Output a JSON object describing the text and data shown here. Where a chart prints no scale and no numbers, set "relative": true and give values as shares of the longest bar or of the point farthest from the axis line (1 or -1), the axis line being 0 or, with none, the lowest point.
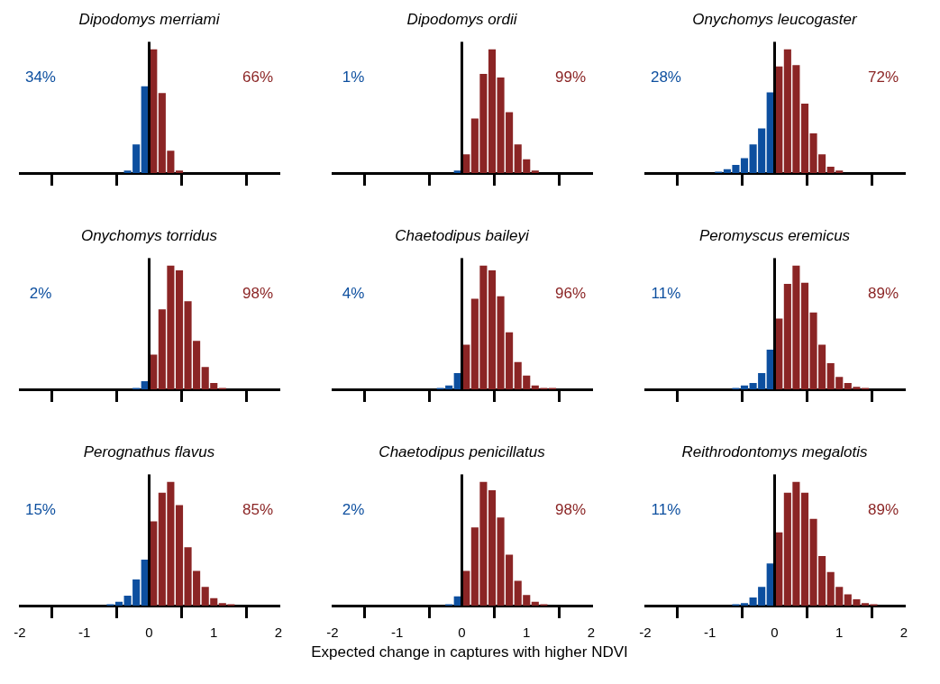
{
  "chart_data": [
    {
      "type": "bar",
      "title": "Dipodomys merriami",
      "relative": true,
      "xlim": [
        -2,
        2
      ],
      "xticks": [
        -2,
        -1,
        0,
        1,
        2
      ],
      "tick_labels": false,
      "x": [
        -0.333,
        -0.2,
        -0.067,
        0.067,
        0.2,
        0.333,
        0.467
      ],
      "values": [
        0.02,
        0.23,
        0.7,
        1,
        0.645,
        0.18,
        0.02
      ],
      "colors": [
        "#0d4f9f",
        "#0d4f9f",
        "#0d4f9f",
        "#8b2525",
        "#8b2525",
        "#8b2525",
        "#8b2525"
      ],
      "ref_lines": [
        {
          "axis": "x",
          "value": 0,
          "color": "#000000"
        }
      ],
      "annotations": [
        "34%",
        "66%"
      ]
    },
    {
      "type": "bar",
      "title": "Dipodomys ordii",
      "relative": true,
      "xlim": [
        -2,
        2
      ],
      "xticks": [
        -2,
        -1,
        0,
        1,
        2
      ],
      "tick_labels": false,
      "x": [
        -0.067,
        0.067,
        0.2,
        0.333,
        0.467,
        0.6,
        0.733,
        0.867,
        1,
        1.133
      ],
      "values": [
        0.02,
        0.15,
        0.44,
        0.8,
        1,
        0.77,
        0.49,
        0.23,
        0.11,
        0.02
      ],
      "colors": [
        "#0d4f9f",
        "#8b2525",
        "#8b2525",
        "#8b2525",
        "#8b2525",
        "#8b2525",
        "#8b2525",
        "#8b2525",
        "#8b2525",
        "#8b2525"
      ],
      "ref_lines": [
        {
          "axis": "x",
          "value": 0,
          "color": "#000000"
        }
      ],
      "annotations": [
        "1%",
        "99%"
      ]
    },
    {
      "type": "bar",
      "title": "Onychomys leucogaster",
      "relative": true,
      "xlim": [
        -2,
        2
      ],
      "xticks": [
        -2,
        -1,
        0,
        1,
        2
      ],
      "tick_labels": false,
      "x": [
        -0.867,
        -0.733,
        -0.6,
        -0.467,
        -0.333,
        -0.2,
        -0.067,
        0.067,
        0.2,
        0.333,
        0.467,
        0.6,
        0.733,
        0.867,
        1
      ],
      "values": [
        0.01,
        0.03,
        0.065,
        0.12,
        0.23,
        0.36,
        0.65,
        0.86,
        1,
        0.87,
        0.56,
        0.32,
        0.15,
        0.05,
        0.02
      ],
      "colors": [
        "#0d4f9f",
        "#0d4f9f",
        "#0d4f9f",
        "#0d4f9f",
        "#0d4f9f",
        "#0d4f9f",
        "#0d4f9f",
        "#8b2525",
        "#8b2525",
        "#8b2525",
        "#8b2525",
        "#8b2525",
        "#8b2525",
        "#8b2525",
        "#8b2525"
      ],
      "ref_lines": [
        {
          "axis": "x",
          "value": 0,
          "color": "#000000"
        }
      ],
      "annotations": [
        "28%",
        "72%"
      ]
    },
    {
      "type": "bar",
      "title": "Onychomys torridus",
      "relative": true,
      "xlim": [
        -2,
        2
      ],
      "xticks": [
        -2,
        -1,
        0,
        1,
        2
      ],
      "tick_labels": false,
      "x": [
        -0.2,
        -0.067,
        0.067,
        0.2,
        0.333,
        0.467,
        0.6,
        0.733,
        0.867,
        1,
        1.133
      ],
      "values": [
        0.01,
        0.065,
        0.28,
        0.645,
        1,
        0.96,
        0.71,
        0.39,
        0.18,
        0.05,
        0.01
      ],
      "colors": [
        "#0d4f9f",
        "#0d4f9f",
        "#8b2525",
        "#8b2525",
        "#8b2525",
        "#8b2525",
        "#8b2525",
        "#8b2525",
        "#8b2525",
        "#8b2525",
        "#8b2525"
      ],
      "ref_lines": [
        {
          "axis": "x",
          "value": 0,
          "color": "#000000"
        }
      ],
      "annotations": [
        "2%",
        "98%"
      ]
    },
    {
      "type": "bar",
      "title": "Chaetodipus baileyi",
      "relative": true,
      "xlim": [
        -2,
        2
      ],
      "xticks": [
        -2,
        -1,
        0,
        1,
        2
      ],
      "tick_labels": false,
      "x": [
        -0.333,
        -0.2,
        -0.067,
        0.067,
        0.2,
        0.333,
        0.467,
        0.6,
        0.733,
        0.867,
        1,
        1.133,
        1.267,
        1.4
      ],
      "values": [
        0.01,
        0.03,
        0.13,
        0.36,
        0.73,
        1,
        0.96,
        0.75,
        0.46,
        0.22,
        0.11,
        0.03,
        0.01,
        0.01
      ],
      "colors": [
        "#0d4f9f",
        "#0d4f9f",
        "#0d4f9f",
        "#8b2525",
        "#8b2525",
        "#8b2525",
        "#8b2525",
        "#8b2525",
        "#8b2525",
        "#8b2525",
        "#8b2525",
        "#8b2525",
        "#8b2525",
        "#8b2525"
      ],
      "ref_lines": [
        {
          "axis": "x",
          "value": 0,
          "color": "#000000"
        }
      ],
      "annotations": [
        "4%",
        "96%"
      ]
    },
    {
      "type": "bar",
      "title": "Peromyscus eremicus",
      "relative": true,
      "xlim": [
        -2,
        2
      ],
      "xticks": [
        -2,
        -1,
        0,
        1,
        2
      ],
      "tick_labels": false,
      "x": [
        -0.6,
        -0.467,
        -0.333,
        -0.2,
        -0.067,
        0.067,
        0.2,
        0.333,
        0.467,
        0.6,
        0.733,
        0.867,
        1,
        1.133,
        1.267,
        1.4
      ],
      "values": [
        0.01,
        0.03,
        0.05,
        0.13,
        0.32,
        0.57,
        0.85,
        1,
        0.86,
        0.62,
        0.36,
        0.21,
        0.1,
        0.05,
        0.02,
        0.01
      ],
      "colors": [
        "#0d4f9f",
        "#0d4f9f",
        "#0d4f9f",
        "#0d4f9f",
        "#0d4f9f",
        "#8b2525",
        "#8b2525",
        "#8b2525",
        "#8b2525",
        "#8b2525",
        "#8b2525",
        "#8b2525",
        "#8b2525",
        "#8b2525",
        "#8b2525",
        "#8b2525"
      ],
      "ref_lines": [
        {
          "axis": "x",
          "value": 0,
          "color": "#000000"
        }
      ],
      "annotations": [
        "11%",
        "89%"
      ]
    },
    {
      "type": "bar",
      "title": "Perognathus flavus",
      "relative": true,
      "xlim": [
        -2,
        2
      ],
      "xticks": [
        -2,
        -1,
        0,
        1,
        2
      ],
      "tick_labels": "x",
      "x": [
        -0.6,
        -0.467,
        -0.333,
        -0.2,
        -0.067,
        0.067,
        0.2,
        0.333,
        0.467,
        0.6,
        0.733,
        0.867,
        1,
        1.133,
        1.267
      ],
      "values": [
        0.01,
        0.03,
        0.08,
        0.21,
        0.37,
        0.68,
        0.91,
        1,
        0.81,
        0.47,
        0.28,
        0.15,
        0.06,
        0.02,
        0.01
      ],
      "colors": [
        "#0d4f9f",
        "#0d4f9f",
        "#0d4f9f",
        "#0d4f9f",
        "#0d4f9f",
        "#8b2525",
        "#8b2525",
        "#8b2525",
        "#8b2525",
        "#8b2525",
        "#8b2525",
        "#8b2525",
        "#8b2525",
        "#8b2525",
        "#8b2525"
      ],
      "ref_lines": [
        {
          "axis": "x",
          "value": 0,
          "color": "#000000"
        }
      ],
      "annotations": [
        "15%",
        "85%"
      ]
    },
    {
      "type": "bar",
      "title": "Chaetodipus penicillatus",
      "xlabel": "Expected change in captures with higher NDVI",
      "relative": true,
      "xlim": [
        -2,
        2
      ],
      "xticks": [
        -2,
        -1,
        0,
        1,
        2
      ],
      "tick_labels": "x",
      "x": [
        -0.2,
        -0.067,
        0.067,
        0.2,
        0.333,
        0.467,
        0.6,
        0.733,
        0.867,
        1,
        1.133,
        1.267
      ],
      "values": [
        0.01,
        0.075,
        0.28,
        0.63,
        1,
        0.93,
        0.71,
        0.41,
        0.2,
        0.085,
        0.03,
        0.01
      ],
      "colors": [
        "#0d4f9f",
        "#0d4f9f",
        "#8b2525",
        "#8b2525",
        "#8b2525",
        "#8b2525",
        "#8b2525",
        "#8b2525",
        "#8b2525",
        "#8b2525",
        "#8b2525",
        "#8b2525"
      ],
      "ref_lines": [
        {
          "axis": "x",
          "value": 0,
          "color": "#000000"
        }
      ],
      "annotations": [
        "2%",
        "98%"
      ]
    },
    {
      "type": "bar",
      "title": "Reithrodontomys megalotis",
      "relative": true,
      "xlim": [
        -2,
        2
      ],
      "xticks": [
        -2,
        -1,
        0,
        1,
        2
      ],
      "tick_labels": "x",
      "x": [
        -0.6,
        -0.467,
        -0.333,
        -0.2,
        -0.067,
        0.067,
        0.2,
        0.333,
        0.467,
        0.6,
        0.733,
        0.867,
        1,
        1.133,
        1.267,
        1.4,
        1.533
      ],
      "values": [
        0.01,
        0.02,
        0.065,
        0.15,
        0.34,
        0.59,
        0.91,
        1,
        0.91,
        0.7,
        0.4,
        0.27,
        0.15,
        0.09,
        0.05,
        0.02,
        0.01
      ],
      "colors": [
        "#0d4f9f",
        "#0d4f9f",
        "#0d4f9f",
        "#0d4f9f",
        "#0d4f9f",
        "#8b2525",
        "#8b2525",
        "#8b2525",
        "#8b2525",
        "#8b2525",
        "#8b2525",
        "#8b2525",
        "#8b2525",
        "#8b2525",
        "#8b2525",
        "#8b2525",
        "#8b2525"
      ],
      "ref_lines": [
        {
          "axis": "x",
          "value": 0,
          "color": "#000000"
        }
      ],
      "annotations": [
        "11%",
        "89%"
      ]
    }
  ]
}
